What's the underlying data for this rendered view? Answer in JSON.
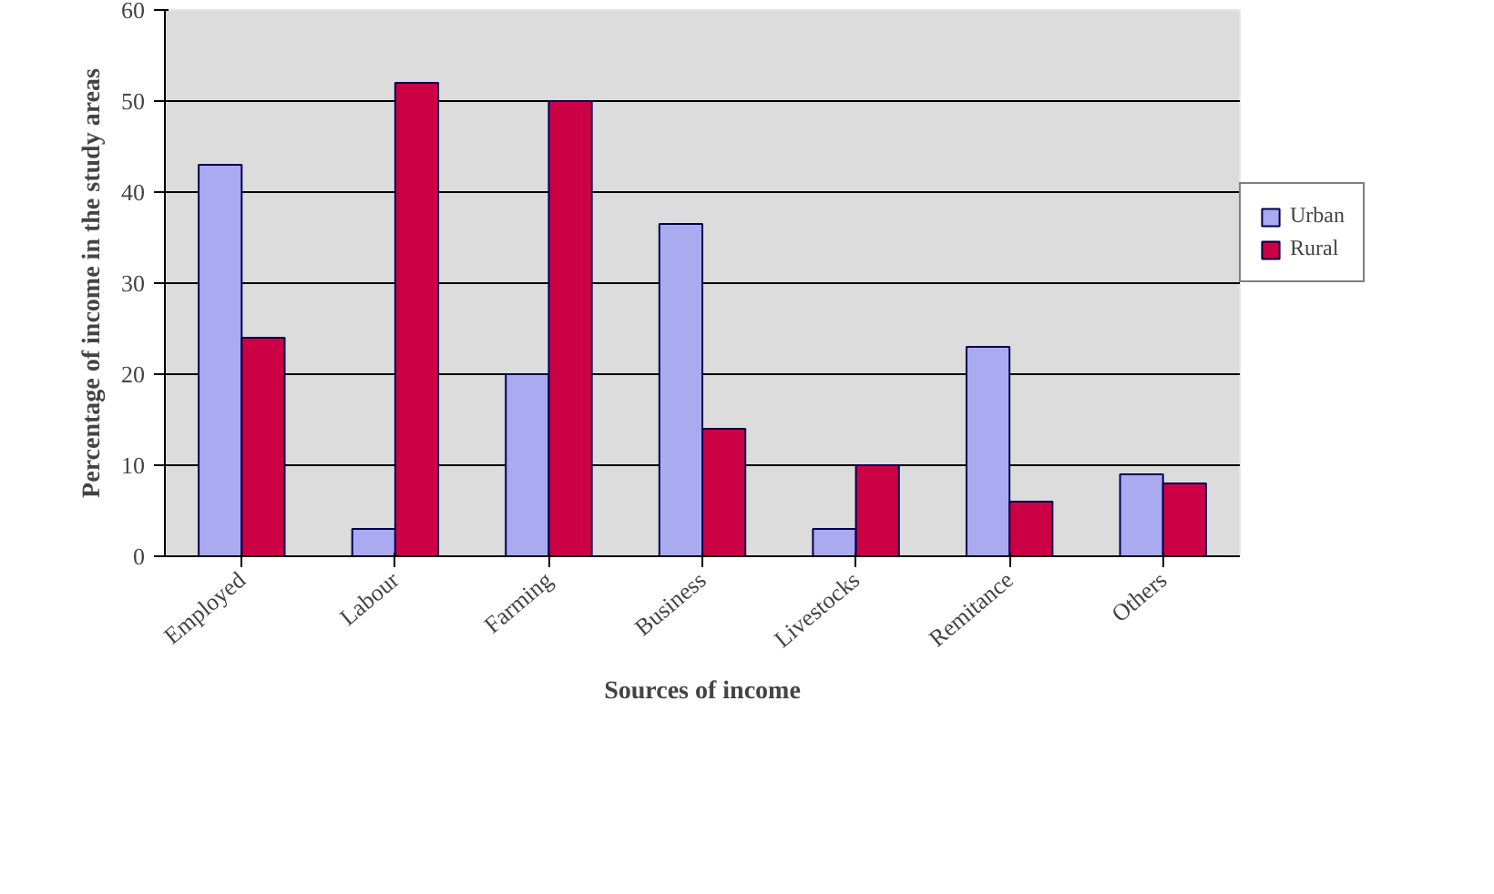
{
  "chart_data": {
    "type": "bar",
    "categories": [
      "Employed",
      "Labour",
      "Farming",
      "Business",
      "Livestocks",
      "Remitance",
      "Others"
    ],
    "series": [
      {
        "name": "Urban",
        "color": "#aaaaf0",
        "values": [
          43,
          3,
          20,
          36.5,
          3,
          23,
          9
        ]
      },
      {
        "name": "Rural",
        "color": "#cc0044",
        "values": [
          24,
          52,
          50,
          14,
          10,
          6,
          8
        ]
      }
    ],
    "xlabel": "Sources of income",
    "ylabel": "Percentage of income in the study areas",
    "ylim": [
      0,
      60
    ],
    "yticks": [
      0,
      10,
      20,
      30,
      40,
      50,
      60
    ],
    "grid": "y",
    "legend": "right"
  }
}
